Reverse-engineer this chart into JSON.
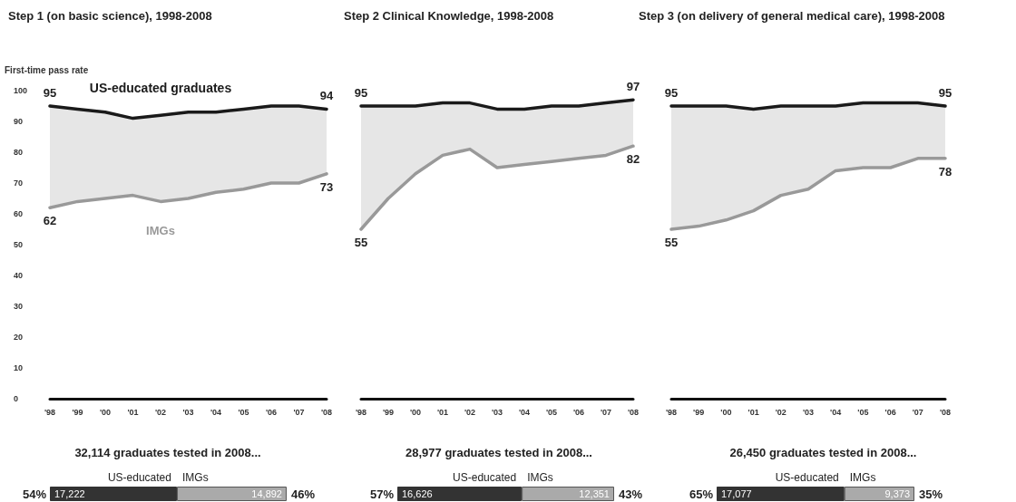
{
  "chart_data": [
    {
      "type": "line",
      "title": "Step 1 (on basic science), 1998-2008",
      "ylabel": "First-time pass rate",
      "categories": [
        "'98",
        "'99",
        "'00",
        "'01",
        "'02",
        "'03",
        "'04",
        "'05",
        "'06",
        "'07",
        "'08"
      ],
      "ylim": [
        0,
        100
      ],
      "yticks": [
        0,
        10,
        20,
        30,
        40,
        50,
        60,
        70,
        80,
        90,
        100
      ],
      "grid": false,
      "legend": false,
      "marker": "none",
      "series": [
        {
          "name": "US-educated graduates",
          "color": "#1a1a1a",
          "values": [
            95,
            94,
            93,
            91,
            92,
            93,
            93,
            94,
            95,
            95,
            94
          ],
          "value_labels": [
            "95",
            null,
            null,
            null,
            null,
            null,
            null,
            null,
            null,
            null,
            "94"
          ],
          "lower": [
            62,
            64,
            65,
            66,
            64,
            65,
            67,
            68,
            70,
            70,
            73
          ],
          "upper": [
            95,
            94,
            93,
            91,
            92,
            93,
            93,
            94,
            95,
            95,
            94
          ]
        },
        {
          "name": "IMGs",
          "color": "#999999",
          "values": [
            62,
            64,
            65,
            66,
            64,
            65,
            67,
            68,
            70,
            70,
            73
          ],
          "value_labels": [
            "62",
            null,
            null,
            null,
            null,
            null,
            null,
            null,
            null,
            null,
            "73"
          ]
        }
      ]
    },
    {
      "type": "line",
      "title": "Step 2 Clinical Knowledge, 1998-2008",
      "categories": [
        "'98",
        "'99",
        "'00",
        "'01",
        "'02",
        "'03",
        "'04",
        "'05",
        "'06",
        "'07",
        "'08"
      ],
      "ylim": [
        0,
        100
      ],
      "yticks": [
        0,
        10,
        20,
        30,
        40,
        50,
        60,
        70,
        80,
        90,
        100
      ],
      "tick_labels": "x",
      "grid": false,
      "legend": false,
      "marker": "none",
      "series": [
        {
          "color": "#1a1a1a",
          "values": [
            95,
            95,
            95,
            96,
            96,
            94,
            94,
            95,
            95,
            96,
            97
          ],
          "value_labels": [
            "95",
            null,
            null,
            null,
            null,
            null,
            null,
            null,
            null,
            null,
            "97"
          ],
          "lower": [
            55,
            65,
            73,
            79,
            81,
            75,
            76,
            77,
            78,
            79,
            82
          ],
          "upper": [
            95,
            95,
            95,
            96,
            96,
            94,
            94,
            95,
            95,
            96,
            97
          ]
        },
        {
          "color": "#999999",
          "values": [
            55,
            65,
            73,
            79,
            81,
            75,
            76,
            77,
            78,
            79,
            82
          ],
          "value_labels": [
            "55",
            null,
            null,
            null,
            null,
            null,
            null,
            null,
            null,
            null,
            "82"
          ]
        }
      ]
    },
    {
      "type": "line",
      "title": "Step 3 (on delivery of general medical care), 1998-2008",
      "categories": [
        "'98",
        "'99",
        "'00",
        "'01",
        "'02",
        "'03",
        "'04",
        "'05",
        "'06",
        "'07",
        "'08"
      ],
      "ylim": [
        0,
        100
      ],
      "yticks": [
        0,
        10,
        20,
        30,
        40,
        50,
        60,
        70,
        80,
        90,
        100
      ],
      "tick_labels": "x",
      "grid": false,
      "legend": false,
      "marker": "none",
      "series": [
        {
          "color": "#1a1a1a",
          "values": [
            95,
            95,
            95,
            94,
            95,
            95,
            95,
            96,
            96,
            96,
            95
          ],
          "value_labels": [
            "95",
            null,
            null,
            null,
            null,
            null,
            null,
            null,
            null,
            null,
            "95"
          ],
          "lower": [
            55,
            56,
            58,
            61,
            66,
            68,
            74,
            75,
            75,
            78,
            78
          ],
          "upper": [
            95,
            95,
            95,
            94,
            95,
            95,
            95,
            96,
            96,
            96,
            95
          ]
        },
        {
          "color": "#999999",
          "values": [
            55,
            56,
            58,
            61,
            66,
            68,
            74,
            75,
            75,
            78,
            78
          ],
          "value_labels": [
            "55",
            null,
            null,
            null,
            null,
            null,
            null,
            null,
            null,
            null,
            "78"
          ]
        }
      ]
    },
    {
      "type": "bar",
      "orientation": "horizontal",
      "stacked": true,
      "title": "32,114 graduates tested in 2008...",
      "categories": [
        null
      ],
      "legend": false,
      "annotations": [
        "54%",
        "46%"
      ],
      "series": [
        {
          "name": "US-educated",
          "color": "#333333",
          "values": [
            17222
          ],
          "value_labels": [
            "17,222"
          ]
        },
        {
          "name": "IMGs",
          "color": "#aaaaaa",
          "values": [
            14892
          ],
          "value_labels": [
            "14,892"
          ]
        }
      ]
    },
    {
      "type": "bar",
      "orientation": "horizontal",
      "stacked": true,
      "title": "28,977 graduates tested in 2008...",
      "categories": [
        null
      ],
      "legend": false,
      "annotations": [
        "57%",
        "43%"
      ],
      "series": [
        {
          "name": "US-educated",
          "color": "#333333",
          "values": [
            16626
          ],
          "value_labels": [
            "16,626"
          ]
        },
        {
          "name": "IMGs",
          "color": "#aaaaaa",
          "values": [
            12351
          ],
          "value_labels": [
            "12,351"
          ]
        }
      ]
    },
    {
      "type": "bar",
      "orientation": "horizontal",
      "stacked": true,
      "title": "26,450 graduates tested in 2008...",
      "categories": [
        null
      ],
      "legend": false,
      "annotations": [
        "65%",
        "35%"
      ],
      "series": [
        {
          "name": "US-educated",
          "color": "#333333",
          "values": [
            17077
          ],
          "value_labels": [
            "17,077"
          ]
        },
        {
          "name": "IMGs",
          "color": "#aaaaaa",
          "values": [
            9373
          ],
          "value_labels": [
            "9,373"
          ]
        }
      ]
    }
  ]
}
